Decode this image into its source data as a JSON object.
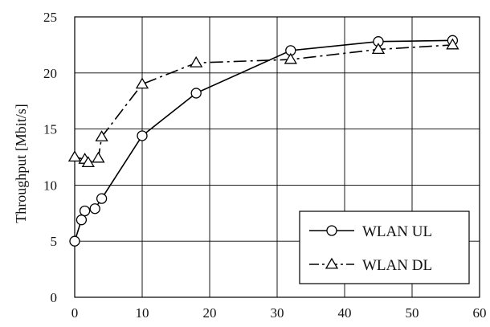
{
  "chart_data": {
    "type": "line",
    "title": "",
    "xlabel": "",
    "ylabel": "Throughput [Mbit/s]",
    "xlim": [
      0,
      60
    ],
    "ylim": [
      0,
      25
    ],
    "xticks": [
      0,
      10,
      20,
      30,
      40,
      50,
      60
    ],
    "yticks": [
      0,
      5,
      10,
      15,
      20,
      25
    ],
    "grid": true,
    "legend_position": "bottom-right",
    "series": [
      {
        "name": "WLAN UL",
        "marker": "circle",
        "line_style": "solid",
        "color": "#000000",
        "x": [
          0,
          1,
          1.5,
          3,
          4,
          10,
          18,
          32,
          45,
          56
        ],
        "y": [
          5.0,
          6.9,
          7.7,
          7.9,
          8.8,
          14.4,
          18.2,
          22.0,
          22.8,
          22.9
        ]
      },
      {
        "name": "WLAN DL",
        "marker": "triangle",
        "line_style": "dash-dot",
        "color": "#000000",
        "x": [
          0,
          1.5,
          2,
          3.5,
          4,
          10,
          18,
          32,
          45,
          56
        ],
        "y": [
          12.5,
          12.3,
          12.0,
          12.4,
          14.3,
          19.0,
          20.9,
          21.2,
          22.1,
          22.5
        ]
      }
    ]
  }
}
